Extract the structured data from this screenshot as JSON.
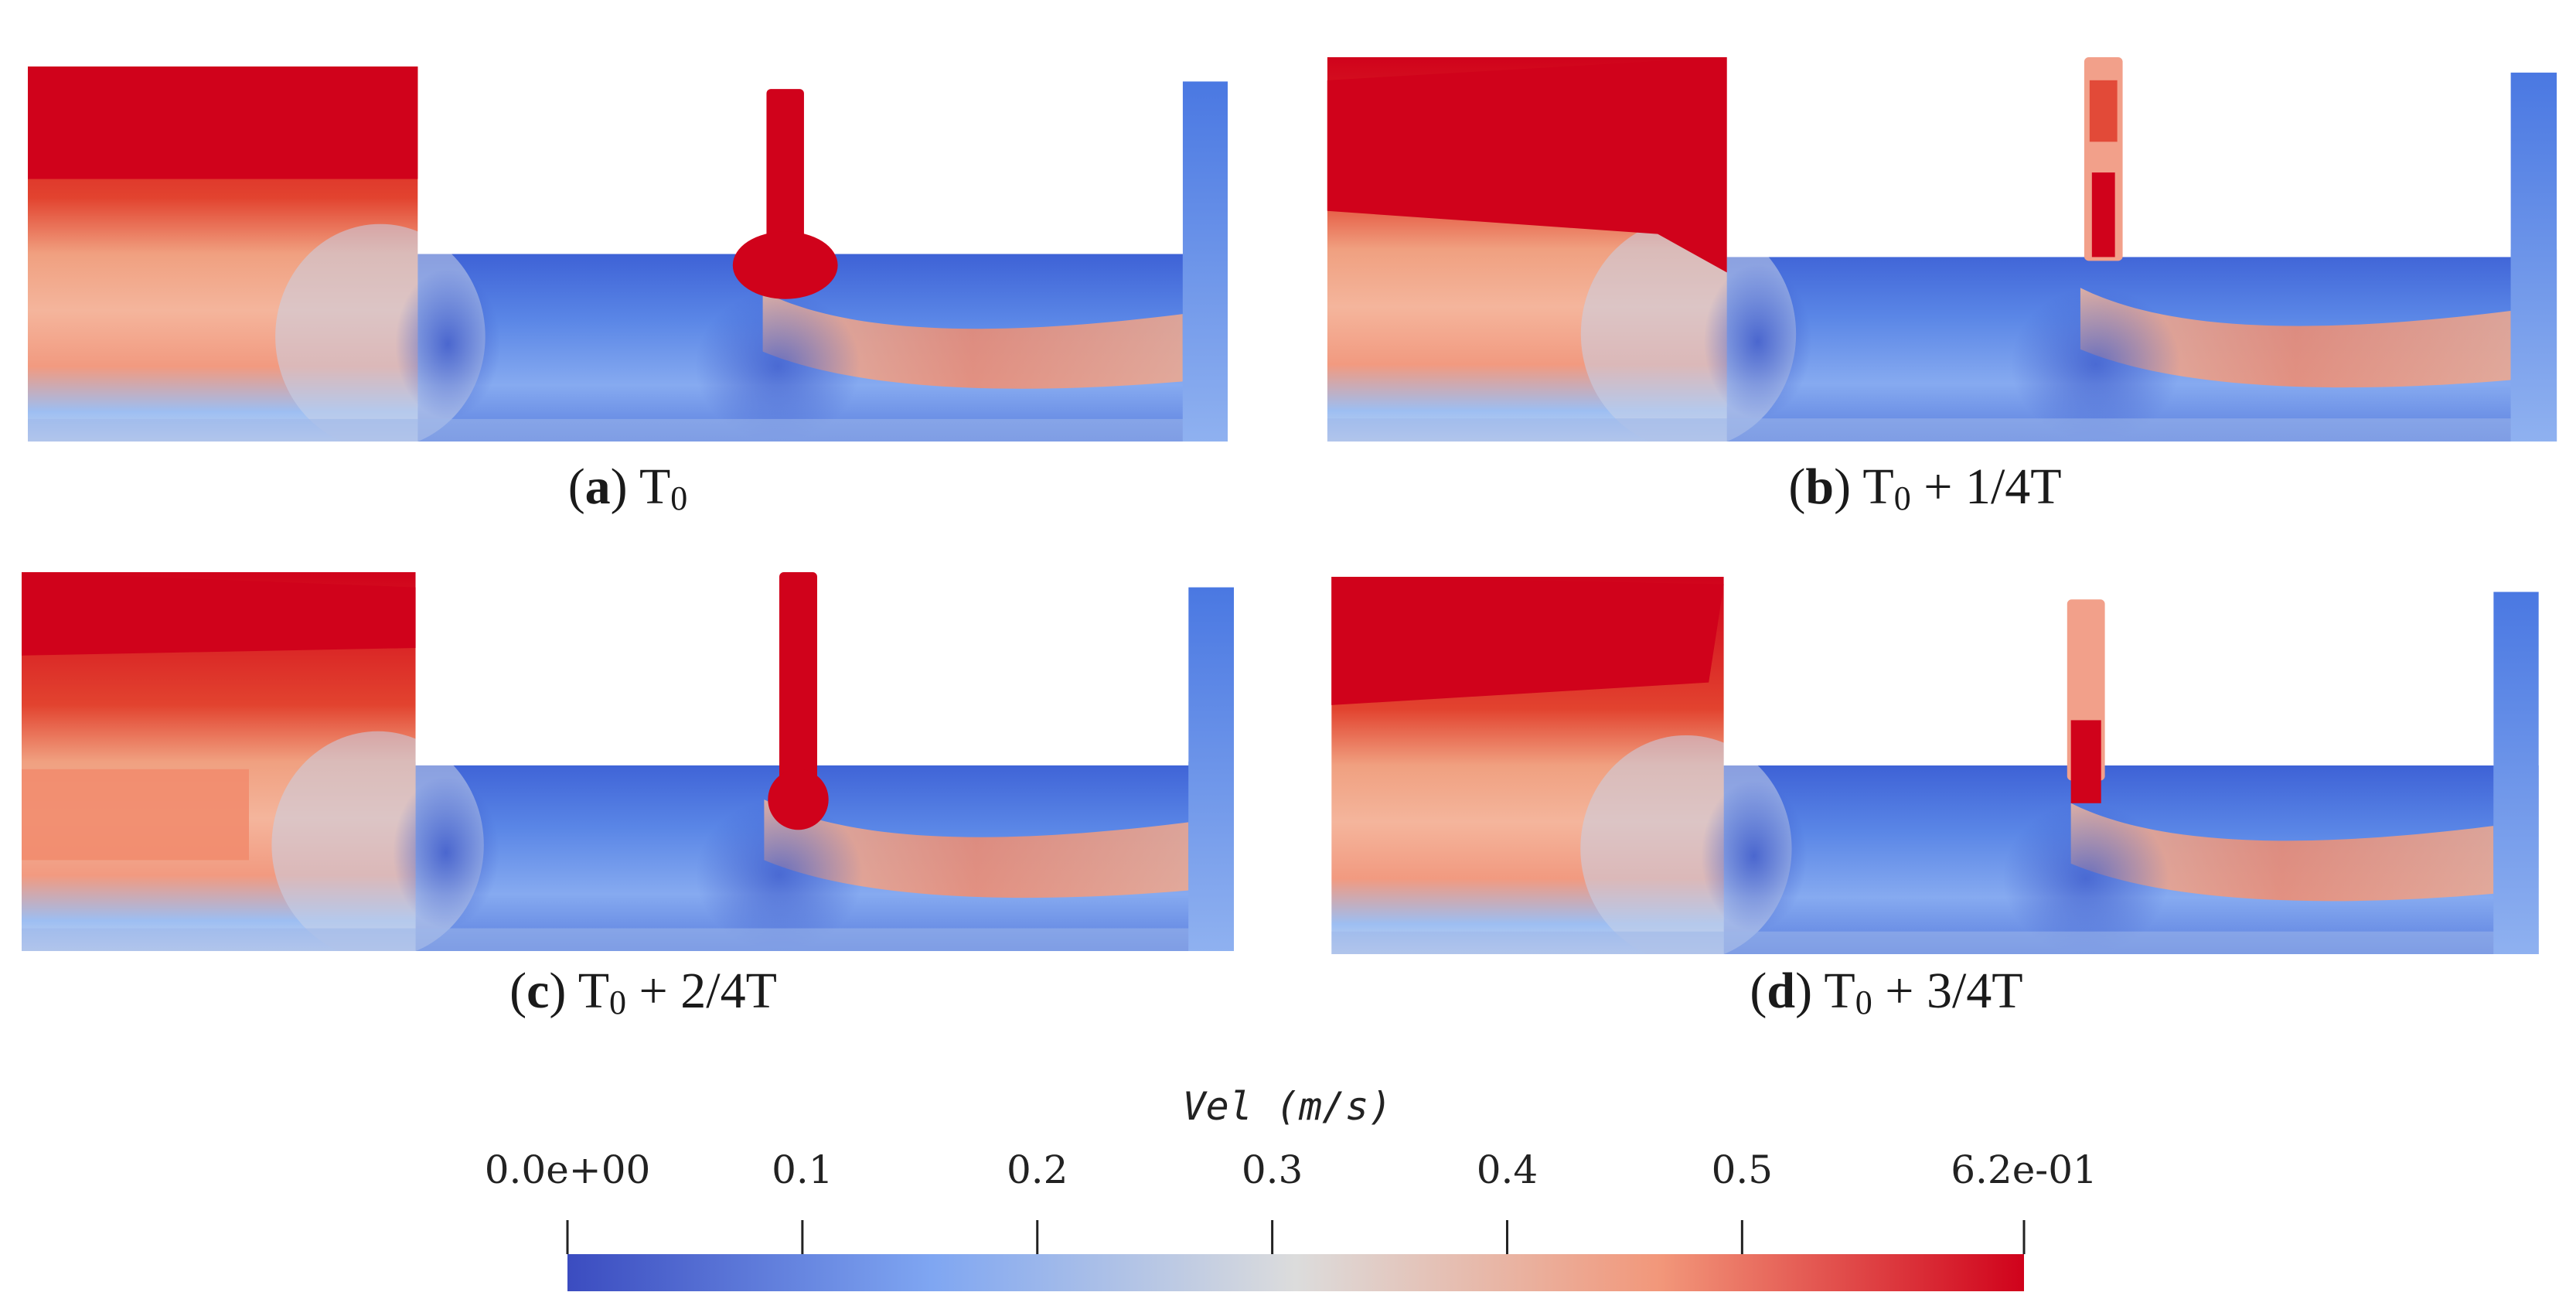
{
  "panels": [
    {
      "letter": "a",
      "title": "T",
      "sub": "0",
      "suffix": ""
    },
    {
      "letter": "b",
      "title": "T",
      "sub": "0",
      "suffix": " + 1/4T"
    },
    {
      "letter": "c",
      "title": "T",
      "sub": "0",
      "suffix": " + 2/4T"
    },
    {
      "letter": "d",
      "title": "T",
      "sub": "0",
      "suffix": " + 3/4T"
    }
  ],
  "colorbar": {
    "title": "Vel (m/s)",
    "min": 0.0,
    "max": 0.62,
    "ticks": [
      {
        "value": 0.0,
        "label": "0.0e+00"
      },
      {
        "value": 0.1,
        "label": "0.1"
      },
      {
        "value": 0.2,
        "label": "0.2"
      },
      {
        "value": 0.3,
        "label": "0.3"
      },
      {
        "value": 0.4,
        "label": "0.4"
      },
      {
        "value": 0.5,
        "label": "0.5"
      },
      {
        "value": 0.62,
        "label": "6.2e-01"
      }
    ],
    "colors": {
      "low": "#3b4cc0",
      "mid": "#dddddd",
      "high": "#d0021b"
    }
  }
}
